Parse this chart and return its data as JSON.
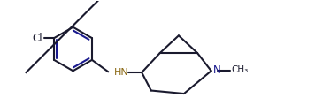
{
  "bg_color": "#ffffff",
  "line_color": "#1a1a2e",
  "double_bond_color": "#1a1a8e",
  "hn_color": "#8b6914",
  "n_color": "#1a1a8e",
  "line_width": 1.5,
  "figsize": [
    3.56,
    1.11
  ],
  "dpi": 100,
  "xlim": [
    0,
    10
  ],
  "ylim": [
    0,
    3.1
  ]
}
